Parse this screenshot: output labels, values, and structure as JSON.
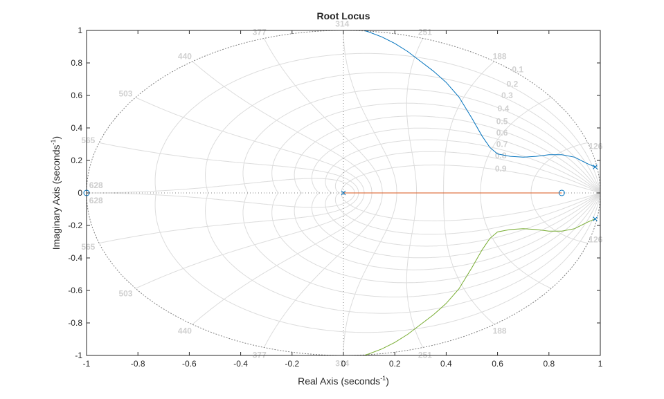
{
  "chart_data": {
    "type": "line",
    "title": "Root Locus",
    "xlabel": "Real Axis (seconds",
    "ylabel": "Imaginary Axis (seconds",
    "label_exponent": "-1",
    "xlim": [
      -1,
      1
    ],
    "ylim": [
      -1,
      1
    ],
    "xticks": [
      "-1",
      "-0.8",
      "-0.6",
      "-0.4",
      "-0.2",
      "0",
      "0.2",
      "0.4",
      "0.6",
      "0.8",
      "1"
    ],
    "yticks": [
      "-1",
      "-0.8",
      "-0.6",
      "-0.4",
      "-0.2",
      "0",
      "0.2",
      "0.4",
      "0.6",
      "0.8",
      "1"
    ],
    "grid": "zgrid",
    "damping_labels": [
      "0.1",
      "0.2",
      "0.3",
      "0.4",
      "0.5",
      "0.6",
      "0.7",
      "0.8",
      "0.9"
    ],
    "frequency_labels": [
      "628",
      "565",
      "503",
      "440",
      "377",
      "314",
      "251",
      "188",
      "126",
      "628"
    ],
    "grid_sample_time": 0.005,
    "colors": {
      "branch_1": "#0072BD",
      "branch_2": "#D95319",
      "branch_3": "#77AC30",
      "grid": "#dcdcdc",
      "grid_label": "#d0d0d0",
      "unit_circle": "#7f7f7f",
      "axes": "#262626"
    },
    "poles": [
      [
        0.98,
        0.16
      ],
      [
        0.98,
        -0.16
      ],
      [
        0,
        0
      ]
    ],
    "zeros": [
      [
        -1,
        0
      ],
      [
        0.85,
        0
      ]
    ],
    "series": [
      {
        "x": [
          0.98,
          0.95,
          0.9,
          0.85,
          0.8,
          0.75,
          0.7,
          0.65,
          0.6,
          0.57,
          0.54,
          0.5,
          0.45,
          0.4,
          0.35,
          0.3,
          0.25,
          0.2,
          0.15,
          0.1,
          0.08
        ],
        "y": [
          0.16,
          0.18,
          0.22,
          0.235,
          0.235,
          0.225,
          0.22,
          0.225,
          0.24,
          0.28,
          0.35,
          0.46,
          0.59,
          0.68,
          0.75,
          0.81,
          0.87,
          0.92,
          0.96,
          0.99,
          1.0
        ]
      },
      {
        "x": [
          0,
          0.2,
          0.4,
          0.6,
          0.85
        ],
        "y": [
          0,
          0,
          0,
          0,
          0
        ]
      },
      {
        "x": [
          0.98,
          0.95,
          0.9,
          0.85,
          0.8,
          0.75,
          0.7,
          0.65,
          0.6,
          0.57,
          0.54,
          0.5,
          0.45,
          0.4,
          0.35,
          0.3,
          0.25,
          0.2,
          0.15,
          0.1,
          0.08
        ],
        "y": [
          -0.16,
          -0.18,
          -0.22,
          -0.235,
          -0.235,
          -0.225,
          -0.22,
          -0.225,
          -0.24,
          -0.28,
          -0.35,
          -0.46,
          -0.59,
          -0.68,
          -0.75,
          -0.81,
          -0.87,
          -0.92,
          -0.96,
          -0.99,
          -1.0
        ]
      }
    ]
  }
}
